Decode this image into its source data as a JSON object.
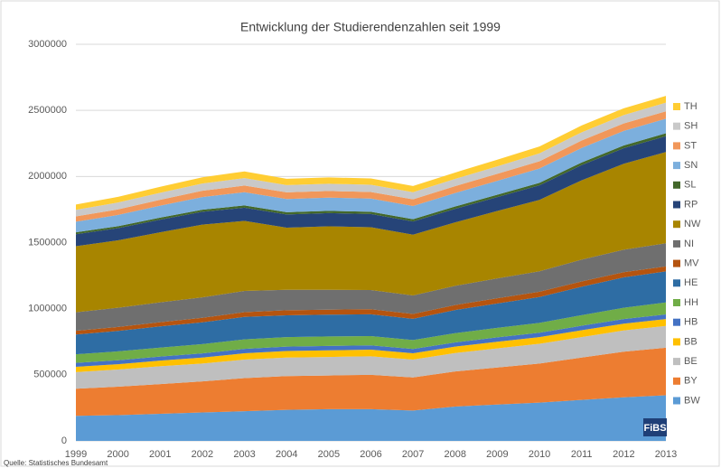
{
  "chart_data": {
    "type": "stacked_area",
    "title": "Entwicklung der Studierendenzahlen seit 1999",
    "source": "Quelle: Statistisches Bundesamt",
    "logo": "FiBS",
    "categories": [
      "1999",
      "2000",
      "2001",
      "2002",
      "2003",
      "2004",
      "2005",
      "2006",
      "2007",
      "2008",
      "2009",
      "2010",
      "2011",
      "2012",
      "2013"
    ],
    "ylim": [
      0,
      3000000
    ],
    "yticks": [
      0,
      500000,
      1000000,
      1500000,
      2000000,
      2500000,
      3000000
    ],
    "grid": true,
    "legend": "right",
    "series": [
      {
        "name": "BW",
        "color": "#5b9bd5",
        "values": [
          190000,
          195000,
          205000,
          215000,
          225000,
          235000,
          240000,
          240000,
          230000,
          260000,
          275000,
          290000,
          310000,
          330000,
          345000
        ]
      },
      {
        "name": "BY",
        "color": "#ed7d31",
        "values": [
          205000,
          215000,
          225000,
          235000,
          250000,
          255000,
          255000,
          260000,
          250000,
          265000,
          280000,
          295000,
          320000,
          345000,
          360000
        ]
      },
      {
        "name": "BE",
        "color": "#bfbfbf",
        "values": [
          125000,
          130000,
          135000,
          135000,
          140000,
          140000,
          140000,
          140000,
          135000,
          140000,
          145000,
          150000,
          155000,
          160000,
          165000
        ]
      },
      {
        "name": "BB",
        "color": "#ffc000",
        "values": [
          40000,
          40000,
          42000,
          45000,
          48000,
          50000,
          50000,
          50000,
          48000,
          48000,
          50000,
          50000,
          52000,
          52000,
          52000
        ]
      },
      {
        "name": "HB",
        "color": "#4472c4",
        "values": [
          30000,
          30000,
          31000,
          32000,
          33000,
          33000,
          33000,
          33000,
          32000,
          32000,
          33000,
          33000,
          34000,
          35000,
          35000
        ]
      },
      {
        "name": "HH",
        "color": "#70ad47",
        "values": [
          65000,
          67000,
          68000,
          70000,
          72000,
          72000,
          72000,
          70000,
          68000,
          70000,
          72000,
          75000,
          80000,
          85000,
          90000
        ]
      },
      {
        "name": "HE",
        "color": "#2e6da4",
        "values": [
          150000,
          155000,
          160000,
          165000,
          170000,
          165000,
          165000,
          165000,
          160000,
          175000,
          185000,
          195000,
          215000,
          230000,
          235000
        ]
      },
      {
        "name": "MV",
        "color": "#b5540f",
        "values": [
          28000,
          30000,
          32000,
          34000,
          36000,
          38000,
          38000,
          38000,
          37000,
          38000,
          39000,
          40000,
          40000,
          39000,
          38000
        ]
      },
      {
        "name": "NI",
        "color": "#6f6f6f",
        "values": [
          140000,
          145000,
          150000,
          155000,
          160000,
          155000,
          150000,
          145000,
          140000,
          145000,
          150000,
          155000,
          165000,
          170000,
          175000
        ]
      },
      {
        "name": "NW",
        "color": "#a88500",
        "values": [
          500000,
          510000,
          530000,
          550000,
          530000,
          470000,
          480000,
          475000,
          460000,
          480000,
          510000,
          540000,
          600000,
          650000,
          690000
        ]
      },
      {
        "name": "RP",
        "color": "#264478",
        "values": [
          90000,
          92000,
          95000,
          97000,
          100000,
          100000,
          100000,
          100000,
          100000,
          102000,
          105000,
          110000,
          115000,
          118000,
          120000
        ]
      },
      {
        "name": "SL",
        "color": "#43682b",
        "values": [
          15000,
          15000,
          16000,
          16000,
          17000,
          17000,
          17000,
          17000,
          17000,
          18000,
          18000,
          19000,
          20000,
          21000,
          22000
        ]
      },
      {
        "name": "SN",
        "color": "#7cafdd",
        "values": [
          80000,
          85000,
          90000,
          95000,
          100000,
          100000,
          100000,
          100000,
          100000,
          102000,
          105000,
          108000,
          110000,
          110000,
          110000
        ]
      },
      {
        "name": "ST",
        "color": "#f1975a",
        "values": [
          40000,
          42000,
          45000,
          48000,
          50000,
          50000,
          50000,
          50000,
          50000,
          52000,
          53000,
          55000,
          56000,
          56000,
          56000
        ]
      },
      {
        "name": "SH",
        "color": "#c9c9c9",
        "values": [
          50000,
          52000,
          53000,
          55000,
          57000,
          55000,
          55000,
          54000,
          54000,
          55000,
          57000,
          60000,
          62000,
          63000,
          65000
        ]
      },
      {
        "name": "TH",
        "color": "#ffcd33",
        "values": [
          40000,
          43000,
          45000,
          47000,
          50000,
          48000,
          48000,
          48000,
          47000,
          48000,
          50000,
          52000,
          52000,
          52000,
          52000
        ]
      }
    ]
  }
}
